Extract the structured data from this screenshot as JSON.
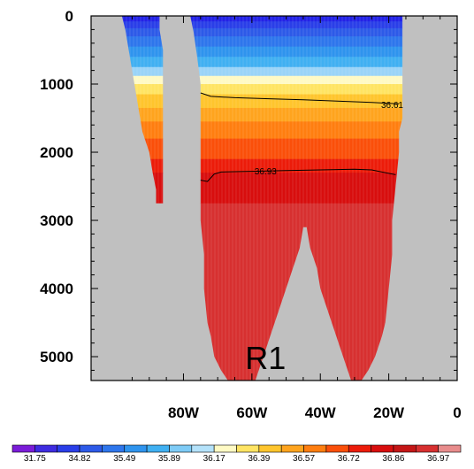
{
  "chart_data": {
    "type": "heatmap",
    "title": "",
    "xlabel": "",
    "ylabel": "",
    "x_ticks": [
      {
        "value": -80,
        "label": "80W"
      },
      {
        "value": -60,
        "label": "60W"
      },
      {
        "value": -40,
        "label": "40W"
      },
      {
        "value": -20,
        "label": "20W"
      },
      {
        "value": 0,
        "label": "0"
      }
    ],
    "y_ticks": [
      {
        "value": 0,
        "label": "0"
      },
      {
        "value": 1000,
        "label": "1000"
      },
      {
        "value": 2000,
        "label": "2000"
      },
      {
        "value": 3000,
        "label": "3000"
      },
      {
        "value": 4000,
        "label": "4000"
      },
      {
        "value": 5000,
        "label": "5000"
      }
    ],
    "xlim": [
      -107,
      0
    ],
    "ylim": [
      5350,
      0
    ],
    "y_reversed": true,
    "land_color": "#c0c0c0",
    "colorbar": {
      "colors": [
        "#7a1cd8",
        "#3e2ce0",
        "#2a3ee8",
        "#2d5ae8",
        "#2e76ec",
        "#2f94ee",
        "#40b0f2",
        "#7ecbf6",
        "#b4e2fa",
        "#fffac4",
        "#ffe463",
        "#ffc52d",
        "#ffa41e",
        "#ff7e10",
        "#fa4f0a",
        "#ec1c0a",
        "#d80e0e",
        "#c41616",
        "#d73030",
        "#e88c8c"
      ],
      "labels": [
        {
          "index": 1,
          "text": "31.75"
        },
        {
          "index": 3,
          "text": "34.82"
        },
        {
          "index": 5,
          "text": "35.49"
        },
        {
          "index": 7,
          "text": "35.89"
        },
        {
          "index": 9,
          "text": "36.17"
        },
        {
          "index": 11,
          "text": "36.39"
        },
        {
          "index": 13,
          "text": "36.57"
        },
        {
          "index": 15,
          "text": "36.72"
        },
        {
          "index": 17,
          "text": "36.86"
        },
        {
          "index": 19,
          "text": "36.97"
        }
      ]
    },
    "depth_layers": [
      {
        "top": 0,
        "bottom": 80,
        "color": "#2222e6"
      },
      {
        "top": 80,
        "bottom": 180,
        "color": "#2a3ee8"
      },
      {
        "top": 180,
        "bottom": 300,
        "color": "#2d5ae8"
      },
      {
        "top": 300,
        "bottom": 450,
        "color": "#2e76ec"
      },
      {
        "top": 450,
        "bottom": 600,
        "color": "#2f94ee"
      },
      {
        "top": 600,
        "bottom": 750,
        "color": "#40b0f2"
      },
      {
        "top": 750,
        "bottom": 880,
        "color": "#9ad4f8"
      },
      {
        "top": 880,
        "bottom": 1000,
        "color": "#fffac4"
      },
      {
        "top": 1000,
        "bottom": 1150,
        "color": "#ffe463"
      },
      {
        "top": 1150,
        "bottom": 1350,
        "color": "#ffc52d"
      },
      {
        "top": 1350,
        "bottom": 1550,
        "color": "#ffa41e"
      },
      {
        "top": 1550,
        "bottom": 1800,
        "color": "#ff7e10"
      },
      {
        "top": 1800,
        "bottom": 2100,
        "color": "#fa4f0a"
      },
      {
        "top": 2100,
        "bottom": 2300,
        "color": "#ec1c0a"
      },
      {
        "top": 2300,
        "bottom": 2750,
        "color": "#d80e0e"
      },
      {
        "top": 2750,
        "bottom": 5350,
        "color": "#d73030"
      }
    ],
    "western_basin": [
      {
        "depth": 0,
        "west": -98,
        "east": -87
      },
      {
        "depth": 200,
        "west": -97,
        "east": -87
      },
      {
        "depth": 500,
        "west": -96,
        "east": -86
      },
      {
        "depth": 800,
        "west": -95,
        "east": -86
      },
      {
        "depth": 1100,
        "west": -94,
        "east": -86
      },
      {
        "depth": 1400,
        "west": -93,
        "east": -86
      },
      {
        "depth": 1700,
        "west": -92,
        "east": -86
      },
      {
        "depth": 2000,
        "west": -90,
        "east": -86
      },
      {
        "depth": 2300,
        "west": -89,
        "east": -86
      },
      {
        "depth": 2550,
        "west": -88,
        "east": -86
      },
      {
        "depth": 2750,
        "west": -88,
        "east": -86
      }
    ],
    "main_basin": [
      {
        "depth": 0,
        "west": -78,
        "east": -16
      },
      {
        "depth": 250,
        "west": -77,
        "east": -16
      },
      {
        "depth": 600,
        "west": -76,
        "east": -16
      },
      {
        "depth": 1000,
        "west": -75,
        "east": -16
      },
      {
        "depth": 1500,
        "west": -75,
        "east": -16
      },
      {
        "depth": 1700,
        "west": -75,
        "east": -17
      },
      {
        "depth": 2000,
        "west": -75,
        "east": -17
      },
      {
        "depth": 2500,
        "west": -75,
        "east": -18
      },
      {
        "depth": 3000,
        "west": -75,
        "east": -19
      },
      {
        "depth": 3500,
        "west": -74,
        "east": -19
      },
      {
        "depth": 4000,
        "west": -74,
        "east": -20
      },
      {
        "depth": 4500,
        "west": -73,
        "east": -21
      },
      {
        "depth": 4700,
        "west": -72,
        "east": -22
      },
      {
        "depth": 5000,
        "west": -71,
        "east": -24
      },
      {
        "depth": 5200,
        "west": -69,
        "east": -26
      },
      {
        "depth": 5350,
        "west": -67,
        "east": -28
      }
    ],
    "ridge": [
      {
        "depth": 3100,
        "west": -45,
        "east": -44
      },
      {
        "depth": 3400,
        "west": -46,
        "east": -43
      },
      {
        "depth": 3700,
        "west": -48,
        "east": -41
      },
      {
        "depth": 4000,
        "west": -50,
        "east": -40
      },
      {
        "depth": 4300,
        "west": -52,
        "east": -38
      },
      {
        "depth": 4600,
        "west": -54,
        "east": -36
      },
      {
        "depth": 4900,
        "west": -56,
        "east": -34
      },
      {
        "depth": 5200,
        "west": -58,
        "east": -32
      },
      {
        "depth": 5350,
        "west": -59,
        "east": -31
      }
    ],
    "contours": [
      {
        "label": "36.61",
        "label_at": {
          "x": -19,
          "depth": 1300
        },
        "points": [
          [
            -75,
            1130
          ],
          [
            -72,
            1180
          ],
          [
            -65,
            1200
          ],
          [
            -55,
            1215
          ],
          [
            -45,
            1230
          ],
          [
            -35,
            1250
          ],
          [
            -25,
            1270
          ],
          [
            -17,
            1290
          ]
        ]
      },
      {
        "label": "36.93",
        "label_at": {
          "x": -56,
          "depth": 2270
        },
        "points": [
          [
            -75,
            2410
          ],
          [
            -73,
            2430
          ],
          [
            -71,
            2320
          ],
          [
            -69,
            2290
          ],
          [
            -60,
            2280
          ],
          [
            -50,
            2270
          ],
          [
            -40,
            2260
          ],
          [
            -30,
            2250
          ],
          [
            -25,
            2260
          ],
          [
            -18,
            2330
          ]
        ]
      }
    ],
    "annotations": [
      {
        "text": "R1",
        "x": -56,
        "depth": 5000
      }
    ]
  }
}
